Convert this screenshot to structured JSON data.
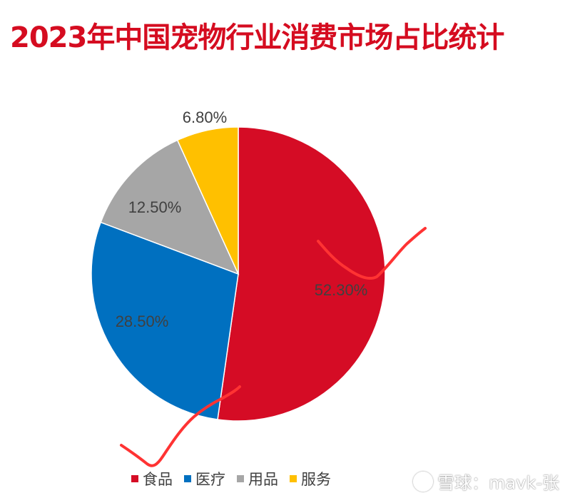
{
  "title": "2023年中国宠物行业消费市场占比统计",
  "chart_data": {
    "type": "pie",
    "title": "2023年中国宠物行业消费市场占比统计",
    "start_angle": "12 o'clock, clockwise",
    "legend_position": "bottom",
    "slices": [
      {
        "name": "食品",
        "value": 52.3,
        "label": "52.30%",
        "color": "#d50c25"
      },
      {
        "name": "医疗",
        "value": 28.5,
        "label": "28.50%",
        "color": "#0070c0"
      },
      {
        "name": "用品",
        "value": 12.5,
        "label": "12.50%",
        "color": "#a6a6a6"
      },
      {
        "name": "服务",
        "value": 6.8,
        "label": "6.80%",
        "color": "#ffc000"
      }
    ],
    "annotation_color": "#ff3333"
  },
  "watermark": {
    "text": "雪球：mavk-张"
  }
}
